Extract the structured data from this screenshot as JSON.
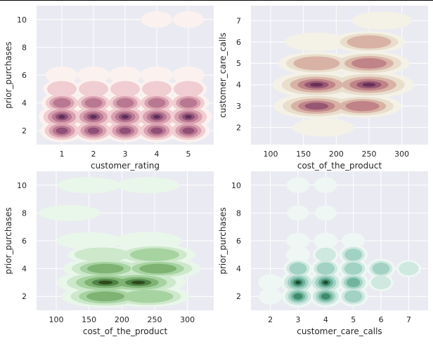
{
  "chart_data": [
    {
      "type": "kde-contour",
      "palette": "pink",
      "colors": [
        "#fbf2ef",
        "#f0cdd0",
        "#d9a0b0",
        "#b97891",
        "#8f4f76",
        "#5c2f57"
      ],
      "xlabel": "customer_rating",
      "ylabel": "prior_purchases",
      "xlim": [
        0.2,
        5.8
      ],
      "ylim": [
        1.0,
        11.0
      ],
      "xticks": [
        1,
        2,
        3,
        4,
        5
      ],
      "yticks": [
        2,
        4,
        6,
        8,
        10
      ],
      "x_levels": [
        1,
        2,
        3,
        4,
        5
      ],
      "y_levels": [
        2,
        3,
        4,
        5,
        6,
        10
      ],
      "density_peaks": [
        {
          "x": 1,
          "y": 3,
          "density": 0.9
        },
        {
          "x": 2,
          "y": 3,
          "density": 0.9
        },
        {
          "x": 3,
          "y": 3,
          "density": 0.95
        },
        {
          "x": 4,
          "y": 3,
          "density": 0.9
        },
        {
          "x": 5,
          "y": 3,
          "density": 0.9
        },
        {
          "x": 1,
          "y": 2,
          "density": 0.65
        },
        {
          "x": 2,
          "y": 2,
          "density": 0.65
        },
        {
          "x": 3,
          "y": 2,
          "density": 0.65
        },
        {
          "x": 4,
          "y": 2,
          "density": 0.65
        },
        {
          "x": 5,
          "y": 2,
          "density": 0.65
        },
        {
          "x": 1,
          "y": 4,
          "density": 0.5
        },
        {
          "x": 2,
          "y": 4,
          "density": 0.5
        },
        {
          "x": 3,
          "y": 4,
          "density": 0.5
        },
        {
          "x": 4,
          "y": 4,
          "density": 0.5
        },
        {
          "x": 5,
          "y": 4,
          "density": 0.5
        },
        {
          "x": 1,
          "y": 5,
          "density": 0.3
        },
        {
          "x": 2,
          "y": 5,
          "density": 0.3
        },
        {
          "x": 3,
          "y": 5,
          "density": 0.3
        },
        {
          "x": 4,
          "y": 5,
          "density": 0.3
        },
        {
          "x": 5,
          "y": 5,
          "density": 0.3
        },
        {
          "x": 1,
          "y": 6,
          "density": 0.1
        },
        {
          "x": 2,
          "y": 6,
          "density": 0.1
        },
        {
          "x": 3,
          "y": 6,
          "density": 0.1
        },
        {
          "x": 4,
          "y": 6,
          "density": 0.1
        },
        {
          "x": 5,
          "y": 6,
          "density": 0.1
        },
        {
          "x": 4,
          "y": 10,
          "density": 0.06
        },
        {
          "x": 5,
          "y": 10,
          "density": 0.06
        }
      ]
    },
    {
      "type": "kde-contour",
      "palette": "pink",
      "colors": [
        "#f4f1e6",
        "#e9ddcc",
        "#d9b2a6",
        "#bf8388",
        "#975672",
        "#6a2f55"
      ],
      "xlabel": "cost_of_the_product",
      "ylabel": "customer_care_calls",
      "xlim": [
        70,
        340
      ],
      "ylim": [
        1.2,
        7.7
      ],
      "xticks": [
        100,
        150,
        200,
        250,
        300
      ],
      "yticks": [
        2,
        3,
        4,
        5,
        6,
        7
      ],
      "density_peaks": [
        {
          "x": 170,
          "y": 4,
          "density": 0.85
        },
        {
          "x": 250,
          "y": 4,
          "density": 0.95
        },
        {
          "x": 170,
          "y": 3,
          "density": 0.75
        },
        {
          "x": 240,
          "y": 3,
          "density": 0.5
        },
        {
          "x": 170,
          "y": 5,
          "density": 0.45
        },
        {
          "x": 250,
          "y": 5,
          "density": 0.6
        },
        {
          "x": 250,
          "y": 6,
          "density": 0.35
        },
        {
          "x": 170,
          "y": 6,
          "density": 0.12
        },
        {
          "x": 180,
          "y": 2,
          "density": 0.1
        },
        {
          "x": 270,
          "y": 7,
          "density": 0.08
        }
      ]
    },
    {
      "type": "kde-contour",
      "palette": "green",
      "colors": [
        "#e9f6ea",
        "#cde8cb",
        "#a6d3a0",
        "#7fb374",
        "#4f8446",
        "#2e4a1c"
      ],
      "xlabel": "cost_of_the_product",
      "ylabel": "prior_purchases",
      "xlim": [
        70,
        340
      ],
      "ylim": [
        1.0,
        11.0
      ],
      "xticks": [
        100,
        150,
        200,
        250,
        300
      ],
      "yticks": [
        2,
        4,
        6,
        8,
        10
      ],
      "density_peaks": [
        {
          "x": 175,
          "y": 3,
          "density": 0.95
        },
        {
          "x": 225,
          "y": 3,
          "density": 0.85
        },
        {
          "x": 175,
          "y": 2,
          "density": 0.6
        },
        {
          "x": 240,
          "y": 2,
          "density": 0.45
        },
        {
          "x": 175,
          "y": 4,
          "density": 0.5
        },
        {
          "x": 255,
          "y": 4,
          "density": 0.55
        },
        {
          "x": 250,
          "y": 5,
          "density": 0.4
        },
        {
          "x": 170,
          "y": 5,
          "density": 0.15
        },
        {
          "x": 240,
          "y": 6,
          "density": 0.12
        },
        {
          "x": 150,
          "y": 6,
          "density": 0.08
        },
        {
          "x": 150,
          "y": 10,
          "density": 0.05
        },
        {
          "x": 240,
          "y": 10,
          "density": 0.04
        },
        {
          "x": 120,
          "y": 8,
          "density": 0.04
        }
      ]
    },
    {
      "type": "kde-contour",
      "palette": "teal",
      "colors": [
        "#eef7f4",
        "#cfe8e0",
        "#a2d2c4",
        "#70b49e",
        "#3f8a6a",
        "#1e4d2e"
      ],
      "xlabel": "customer_care_calls",
      "ylabel": "prior_purchases",
      "xlim": [
        1.3,
        7.7
      ],
      "ylim": [
        1.0,
        11.0
      ],
      "xticks": [
        2,
        3,
        4,
        5,
        6,
        7
      ],
      "yticks": [
        2,
        4,
        6,
        8,
        10
      ],
      "density_peaks": [
        {
          "x": 3,
          "y": 3,
          "density": 0.95
        },
        {
          "x": 4,
          "y": 3,
          "density": 0.95
        },
        {
          "x": 3,
          "y": 2,
          "density": 0.7
        },
        {
          "x": 4,
          "y": 2,
          "density": 0.7
        },
        {
          "x": 5,
          "y": 3,
          "density": 0.55
        },
        {
          "x": 5,
          "y": 2,
          "density": 0.45
        },
        {
          "x": 3,
          "y": 4,
          "density": 0.4
        },
        {
          "x": 4,
          "y": 4,
          "density": 0.45
        },
        {
          "x": 5,
          "y": 4,
          "density": 0.45
        },
        {
          "x": 5,
          "y": 5,
          "density": 0.4
        },
        {
          "x": 6,
          "y": 4,
          "density": 0.38
        },
        {
          "x": 7,
          "y": 4,
          "density": 0.15
        },
        {
          "x": 2,
          "y": 3,
          "density": 0.12
        },
        {
          "x": 2,
          "y": 2,
          "density": 0.08
        },
        {
          "x": 4,
          "y": 5,
          "density": 0.2
        },
        {
          "x": 3,
          "y": 5,
          "density": 0.12
        },
        {
          "x": 6,
          "y": 3,
          "density": 0.15
        },
        {
          "x": 4,
          "y": 6,
          "density": 0.1
        },
        {
          "x": 3,
          "y": 6,
          "density": 0.08
        },
        {
          "x": 5,
          "y": 6,
          "density": 0.08
        },
        {
          "x": 3,
          "y": 10,
          "density": 0.06
        },
        {
          "x": 4,
          "y": 10,
          "density": 0.06
        },
        {
          "x": 3,
          "y": 8,
          "density": 0.04
        },
        {
          "x": 4,
          "y": 8,
          "density": 0.04
        }
      ]
    }
  ]
}
